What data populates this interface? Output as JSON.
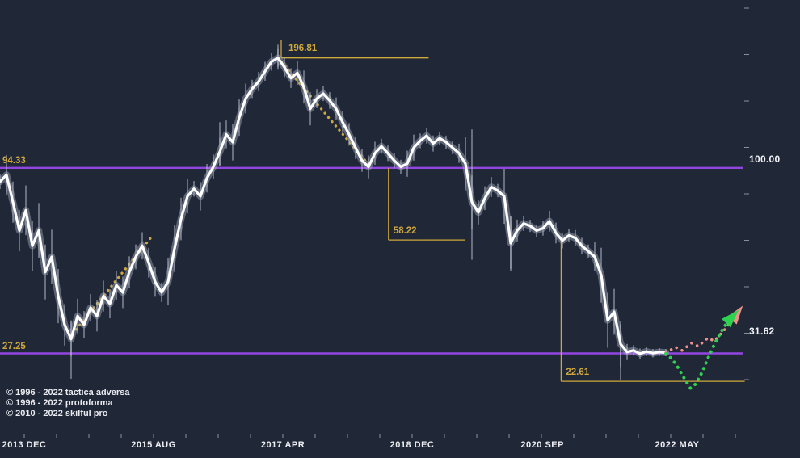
{
  "colors": {
    "background": "#202737",
    "gold": "#cfa83c",
    "purple": "#9146e0",
    "price_line": "#ffffff",
    "halo": "rgba(165,172,190,0.45)",
    "wick": "rgba(185,191,205,0.75)",
    "green": "#2fd24f",
    "pink": "#f2918c",
    "axis_text": "#eceef2",
    "tick": "#8a90a0"
  },
  "levels": [
    {
      "label": "94.33",
      "price": 94.33
    },
    {
      "label": "27.25",
      "price": 27.25
    }
  ],
  "annotations": [
    {
      "id": "peak",
      "label": "196.81",
      "price": 196.81,
      "kind": "peak",
      "at_month": 43.5,
      "to_month": 66.3
    },
    {
      "id": "retr-58",
      "label": "58.22",
      "price": 58.22,
      "kind": "drop",
      "at_month": 60.1,
      "from_price": 94.33,
      "to_month": 71.9
    },
    {
      "id": "retr-22",
      "label": "22.61",
      "price": 22.61,
      "kind": "drop",
      "at_month": 86.8,
      "from_price": 58.22,
      "to_month": 115.2
    }
  ],
  "chart_data": {
    "type": "line",
    "title": "",
    "y_axis": {
      "scale": "log",
      "labels": [
        {
          "label": "100.00",
          "price": 100.0
        },
        {
          "label": "31.62",
          "price": 31.62
        }
      ]
    },
    "x_axis": {
      "unit": "month",
      "start": "2013-08",
      "labels": [
        {
          "label": "2013 DEC",
          "month": 3.75
        },
        {
          "label": "2015 AUG",
          "month": 23.75
        },
        {
          "label": "2017 APR",
          "month": 43.75
        },
        {
          "label": "2018 DEC",
          "month": 63.75
        },
        {
          "label": "2020 SEP",
          "month": 83.9
        },
        {
          "label": "2022 MAY",
          "month": 104.75
        }
      ]
    },
    "prices": [
      86,
      90,
      75,
      62,
      71,
      56,
      62,
      47,
      52,
      40,
      33,
      30,
      35,
      33,
      37,
      35,
      40,
      38,
      43,
      41,
      47,
      52,
      56,
      50,
      44,
      41,
      44,
      55,
      67,
      78,
      82,
      78,
      88,
      95,
      105,
      118,
      112,
      132,
      150,
      160,
      168,
      180,
      192,
      196.8,
      185,
      172,
      178,
      162,
      140,
      150,
      155,
      148,
      140,
      128,
      118,
      108,
      99,
      95,
      104,
      109,
      104,
      99,
      95,
      97,
      108,
      113,
      117,
      111,
      115,
      112,
      108,
      104,
      97,
      75,
      70,
      77,
      83,
      81,
      78,
      57,
      62,
      65,
      64,
      62,
      63,
      66,
      61,
      58,
      60,
      59,
      56,
      54,
      52,
      46,
      34,
      36,
      29,
      27.5,
      27.8,
      27.2,
      27.6,
      27.3,
      27.5,
      27.4
    ],
    "trendlines": [
      {
        "name": "uptrend-2014-2015",
        "style": "dotted",
        "color_key": "gold",
        "from": [
          11.8,
          32
        ],
        "to": [
          23.3,
          59
        ]
      },
      {
        "name": "downtrend-2017-2018",
        "style": "dotted",
        "color_key": "gold",
        "from": [
          43,
          196.81
        ],
        "to": [
          57.3,
          95
        ]
      }
    ],
    "extra_wicks": [
      [
        11,
        34,
        23
      ],
      [
        34,
        128,
        96
      ],
      [
        43,
        215,
        182
      ],
      [
        73,
        122,
        51
      ],
      [
        79,
        68,
        48
      ],
      [
        96,
        33,
        22.8
      ]
    ],
    "forecasts": [
      {
        "name": "shallow-recovery",
        "color_key": "pink",
        "points": [
          [
            103,
            27.4
          ],
          [
            104.5,
            28.4
          ],
          [
            105.5,
            27.8
          ],
          [
            107,
            29.2
          ],
          [
            108,
            28.6
          ],
          [
            109.5,
            30.2
          ],
          [
            110.5,
            29.6
          ],
          [
            112,
            31.8
          ],
          [
            113,
            33.5
          ]
        ],
        "arrow_tip": [
          114.9,
          37.5
        ]
      },
      {
        "name": "deeper-v-recovery",
        "color_key": "green",
        "points": [
          [
            103,
            27.2
          ],
          [
            104,
            26.2
          ],
          [
            105,
            24.6
          ],
          [
            106,
            22.8
          ],
          [
            106.8,
            21.6
          ],
          [
            107.6,
            22.2
          ],
          [
            108.6,
            24.0
          ],
          [
            109.6,
            26.6
          ],
          [
            110.6,
            29.2
          ],
          [
            111.6,
            31.6
          ],
          [
            112.6,
            33.8
          ]
        ],
        "arrow_tip": [
          114.3,
          36.5
        ]
      }
    ]
  },
  "footer": {
    "copyright_lines": [
      "© 1996 - 2022 tactica adversa",
      "© 1996 - 2022 protoforma",
      "© 2010 - 2022 skilful pro"
    ]
  }
}
